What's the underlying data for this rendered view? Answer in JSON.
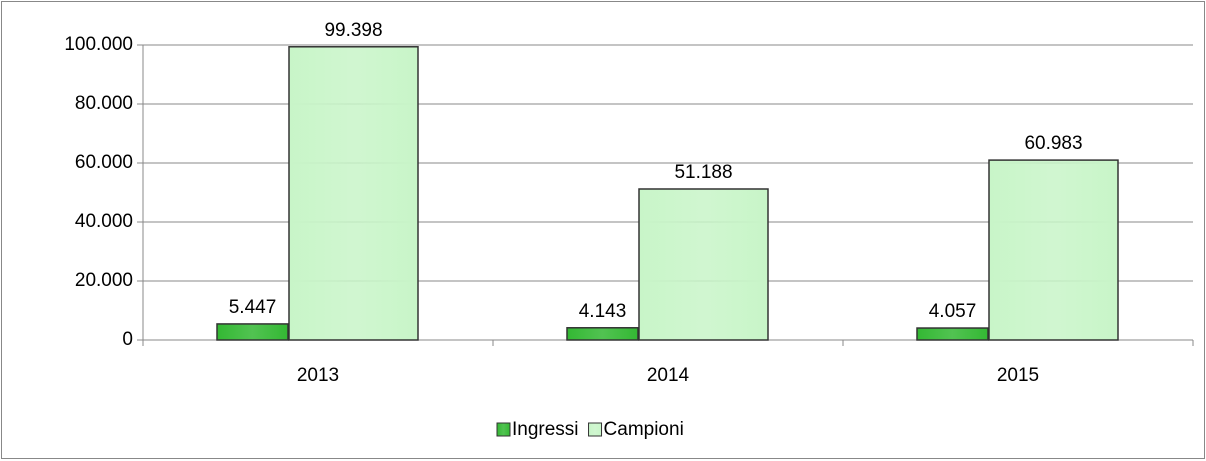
{
  "chart_data": {
    "type": "bar",
    "categories": [
      "2013",
      "2014",
      "2015"
    ],
    "series": [
      {
        "name": "Ingressi",
        "color": "#33b833",
        "values": [
          5447,
          4143,
          4057
        ],
        "value_labels": [
          "5.447",
          "4.143",
          "4.057"
        ]
      },
      {
        "name": "Campioni",
        "color": "#c8f5c8",
        "values": [
          99398,
          51188,
          60983
        ],
        "value_labels": [
          "99.398",
          "51.188",
          "60.983"
        ]
      }
    ],
    "ylim": [
      0,
      100000
    ],
    "yticks": [
      0,
      {
        "value": 20000,
        "label": "20.000"
      },
      {
        "value": 40000,
        "label": "40.000"
      },
      {
        "value": 60000,
        "label": "60.000"
      },
      {
        "value": 80000,
        "label": "80.000"
      },
      {
        "value": 100000,
        "label": "100.000"
      }
    ],
    "grid": true,
    "legend": "bottom"
  }
}
